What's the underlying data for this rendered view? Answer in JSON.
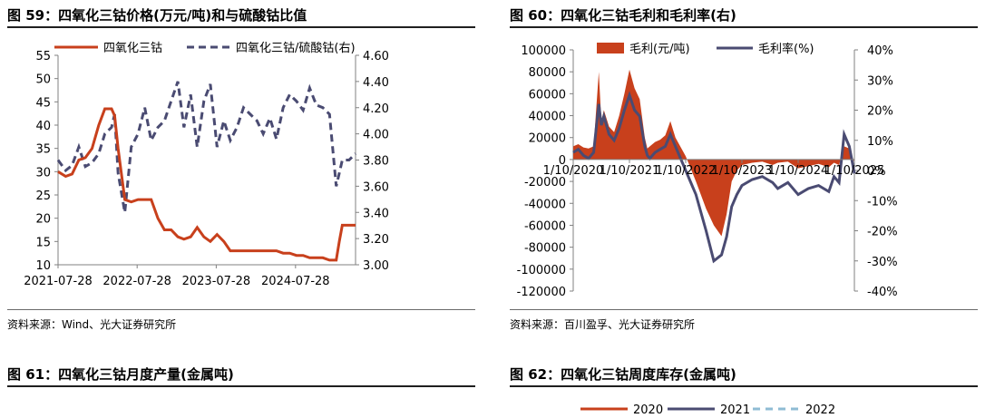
{
  "colors": {
    "red": "#c8401c",
    "navy": "#4a4b72",
    "light_blue": "#8fbcd4",
    "axis": "#808080"
  },
  "fig59": {
    "title": "图 59：四氧化三钴价格(万元/吨)和与硫酸钴比值",
    "source": "资料来源：Wind、光大证券研究所",
    "chart_data": {
      "type": "line",
      "dates": [
        "2021-07-28",
        "2021-09-01",
        "2021-10-01",
        "2021-11-01",
        "2021-12-01",
        "2022-01-01",
        "2022-02-01",
        "2022-03-01",
        "2022-04-01",
        "2022-04-15",
        "2022-05-01",
        "2022-06-01",
        "2022-07-01",
        "2022-08-01",
        "2022-09-01",
        "2022-10-01",
        "2022-11-01",
        "2022-12-01",
        "2023-01-01",
        "2023-02-01",
        "2023-03-01",
        "2023-04-01",
        "2023-05-01",
        "2023-06-01",
        "2023-07-01",
        "2023-08-01",
        "2023-09-01",
        "2023-10-01",
        "2023-11-01",
        "2023-12-01",
        "2024-01-01",
        "2024-02-01",
        "2024-03-01",
        "2024-04-01",
        "2024-05-01",
        "2024-06-01",
        "2024-07-01",
        "2024-08-01",
        "2024-09-01",
        "2024-10-01",
        "2024-11-01",
        "2024-12-01",
        "2025-01-01",
        "2025-02-01",
        "2025-02-15",
        "2025-03-01",
        "2025-04-01",
        "2025-05-01"
      ],
      "series": [
        {
          "name": "四氧化三钴",
          "axis": "left",
          "values": [
            30,
            29,
            29.5,
            32.5,
            33,
            35,
            40,
            43.5,
            43.5,
            42,
            35,
            24,
            23.5,
            24,
            24,
            24,
            20,
            17.5,
            17.5,
            16,
            15.5,
            16,
            18,
            16,
            15,
            16.5,
            15,
            13,
            13,
            13,
            13,
            13,
            13,
            13,
            13,
            12.5,
            12.5,
            12,
            12,
            11.5,
            11.5,
            11.5,
            11,
            11,
            15,
            18.5,
            18.5,
            18.5
          ]
        },
        {
          "name": "四氧化三钴/硫酸钴(右)",
          "axis": "right",
          "values": [
            3.8,
            3.72,
            3.76,
            3.9,
            3.75,
            3.78,
            3.85,
            4.0,
            4.05,
            4.15,
            3.7,
            3.4,
            3.9,
            4.0,
            4.2,
            3.95,
            4.05,
            4.1,
            4.25,
            4.4,
            4.05,
            4.3,
            3.9,
            4.25,
            4.38,
            3.9,
            4.1,
            3.95,
            4.05,
            4.2,
            4.15,
            4.1,
            4.0,
            4.12,
            3.96,
            4.2,
            4.3,
            4.25,
            4.18,
            4.35,
            4.22,
            4.2,
            4.15,
            3.6,
            3.7,
            3.8,
            3.8,
            3.85
          ]
        }
      ],
      "left_axis": {
        "min": 10,
        "max": 55,
        "ticks": [
          "10",
          "15",
          "20",
          "25",
          "30",
          "35",
          "40",
          "45",
          "50",
          "55"
        ]
      },
      "right_axis": {
        "min": 3.0,
        "max": 4.6,
        "ticks": [
          "3.00",
          "3.20",
          "3.40",
          "3.60",
          "3.80",
          "4.00",
          "4.20",
          "4.40",
          "4.60"
        ]
      },
      "x_ticks": [
        "2021-07-28",
        "2022-07-28",
        "2023-07-28",
        "2024-07-28"
      ],
      "legend_position": "top"
    }
  },
  "fig60": {
    "title": "图 60：四氧化三钴毛利和毛利率(右)",
    "source": "资料来源：百川盈孚、光大证券研究所",
    "chart_data": {
      "type": "area",
      "x": [
        2020.0,
        2020.1,
        2020.2,
        2020.3,
        2020.4,
        2020.5,
        2020.55,
        2020.6,
        2020.7,
        2020.8,
        2020.9,
        2021.0,
        2021.1,
        2021.2,
        2021.3,
        2021.4,
        2021.45,
        2021.5,
        2021.6,
        2021.7,
        2021.8,
        2021.9,
        2022.0,
        2022.2,
        2022.4,
        2022.6,
        2022.75,
        2022.9,
        2023.0,
        2023.1,
        2023.2,
        2023.3,
        2023.5,
        2023.7,
        2023.9,
        2024.0,
        2024.2,
        2024.4,
        2024.6,
        2024.8,
        2025.0,
        2025.1,
        2025.2,
        2025.3,
        2025.4,
        2025.5
      ],
      "series": [
        {
          "name": "毛利(元/吨)",
          "axis": "left",
          "values": [
            12000,
            14000,
            11000,
            10000,
            12000,
            80000,
            35000,
            45000,
            30000,
            25000,
            40000,
            60000,
            82000,
            65000,
            55000,
            20000,
            10000,
            12000,
            16000,
            18000,
            22000,
            35000,
            20000,
            3000,
            -20000,
            -45000,
            -60000,
            -70000,
            -50000,
            -20000,
            -10000,
            -5000,
            -3000,
            -2000,
            -5000,
            -3000,
            -2000,
            -8000,
            -6000,
            -4000,
            -7000,
            -3000,
            -5000,
            12000,
            10000,
            -3000
          ]
        },
        {
          "name": "毛利率(%)",
          "axis": "right",
          "values": [
            6,
            7,
            5,
            4,
            6,
            22,
            15,
            18,
            12,
            10,
            14,
            20,
            25,
            20,
            18,
            8,
            5,
            4,
            6,
            7,
            8,
            12,
            8,
            0,
            -8,
            -20,
            -30,
            -28,
            -22,
            -12,
            -8,
            -5,
            -3,
            -2,
            -4,
            -6,
            -4,
            -8,
            -6,
            -5,
            -7,
            -2,
            -4,
            12,
            8,
            -1
          ]
        }
      ],
      "left_axis": {
        "min": -120000,
        "max": 100000,
        "ticks": [
          "-120000",
          "-100000",
          "-80000",
          "-60000",
          "-40000",
          "-20000",
          "0",
          "20000",
          "40000",
          "60000",
          "80000",
          "100000"
        ]
      },
      "right_axis": {
        "min": -40,
        "max": 40,
        "ticks": [
          "-40%",
          "-30%",
          "-20%",
          "-10%",
          "0%",
          "10%",
          "20%",
          "30%",
          "40%"
        ]
      },
      "x_ticks": [
        "1/10/2020",
        "1/10/2021",
        "1/10/2022",
        "1/10/2023",
        "1/10/2024",
        "1/10/2025"
      ],
      "legend_position": "top"
    }
  },
  "fig61": {
    "title": "图 61：四氧化三钴月度产量(金属吨)"
  },
  "fig62": {
    "title": "图 62：四氧化三钴周度库存(金属吨)",
    "legend": [
      "2020",
      "2021",
      "2022"
    ]
  }
}
